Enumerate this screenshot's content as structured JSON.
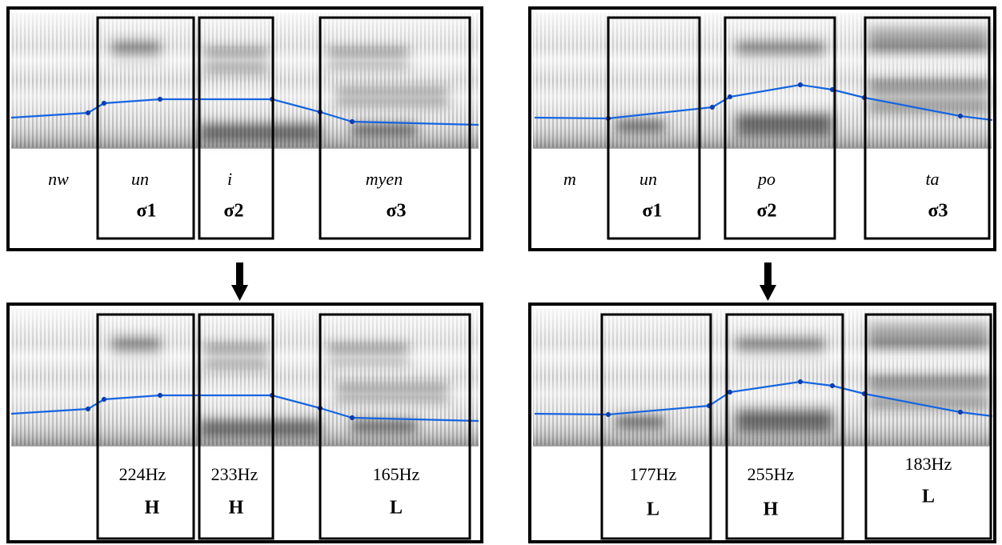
{
  "panels": [
    {
      "words": [
        "nw",
        "un",
        "i",
        "myen"
      ],
      "syllables": [
        "σ1",
        "σ2",
        "σ3"
      ]
    },
    {
      "words": [
        "m",
        "un",
        "po",
        "ta"
      ],
      "syllables": [
        "σ1",
        "σ2",
        "σ3"
      ]
    },
    {
      "frequencies": [
        "224Hz",
        "233Hz",
        "165Hz"
      ],
      "tones": [
        "H",
        "H",
        "L"
      ]
    },
    {
      "frequencies": [
        "177Hz",
        "255Hz",
        "183Hz"
      ],
      "tones": [
        "L",
        "H",
        "L"
      ]
    }
  ]
}
